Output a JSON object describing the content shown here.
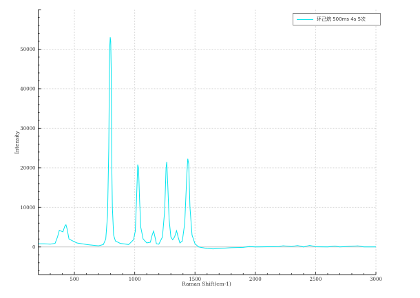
{
  "chart_data": {
    "type": "line",
    "title": "",
    "xlabel": "Raman Shift(cm-1)",
    "ylabel": "Intensity",
    "xlim": [
      200,
      3000
    ],
    "ylim": [
      -7000,
      60000
    ],
    "xticks": [
      500,
      1000,
      1500,
      2000,
      2500,
      3000
    ],
    "yticks": [
      0,
      10000,
      20000,
      30000,
      40000,
      50000
    ],
    "grid": true,
    "legend_position": "top-right",
    "series": [
      {
        "name": "环己烷  500ms  4s  5次",
        "color": "#00e5ee",
        "x": [
          200,
          250,
          300,
          340,
          360,
          375,
          390,
          405,
          420,
          430,
          440,
          455,
          480,
          520,
          600,
          700,
          740,
          760,
          775,
          785,
          792,
          797,
          801,
          805,
          810,
          815,
          825,
          840,
          880,
          950,
          990,
          1005,
          1015,
          1025,
          1032,
          1040,
          1050,
          1070,
          1100,
          1130,
          1145,
          1157,
          1168,
          1180,
          1200,
          1230,
          1248,
          1260,
          1266,
          1274,
          1285,
          1300,
          1315,
          1330,
          1347,
          1360,
          1375,
          1395,
          1415,
          1432,
          1440,
          1448,
          1458,
          1475,
          1500,
          1530,
          1600,
          1650,
          1700,
          1750,
          1800,
          1900,
          1950,
          2000,
          2100,
          2200,
          2230,
          2300,
          2350,
          2400,
          2450,
          2500,
          2600,
          2660,
          2700,
          2850,
          2900,
          3000
        ],
        "y": [
          800,
          800,
          700,
          900,
          2500,
          4200,
          4000,
          3800,
          5200,
          5600,
          4500,
          2000,
          1600,
          1000,
          600,
          300,
          600,
          2000,
          8000,
          25000,
          50000,
          53000,
          52000,
          45000,
          20000,
          10000,
          3000,
          1500,
          900,
          600,
          1800,
          4000,
          12000,
          20800,
          20000,
          12000,
          5000,
          2000,
          1000,
          1200,
          3000,
          4000,
          2500,
          800,
          700,
          2500,
          9000,
          20000,
          21500,
          16000,
          7000,
          2500,
          1800,
          2500,
          4100,
          2500,
          1000,
          1500,
          6000,
          18000,
          22300,
          21000,
          10000,
          3000,
          800,
          0,
          -400,
          -500,
          -400,
          -300,
          -200,
          -100,
          100,
          0,
          50,
          100,
          300,
          100,
          350,
          0,
          400,
          50,
          0,
          200,
          0,
          250,
          0,
          0
        ]
      }
    ]
  }
}
